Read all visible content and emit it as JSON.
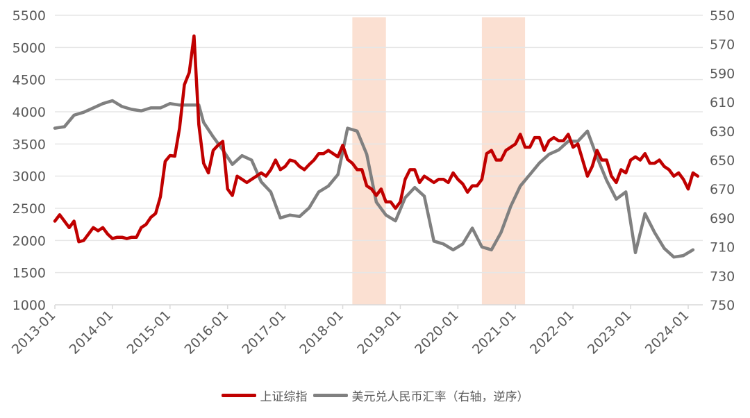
{
  "chart_data": {
    "type": "line",
    "title": "",
    "xlabel": "",
    "ylabel": "",
    "x_ticks": [
      "2013-01",
      "2014-01",
      "2015-01",
      "2016-01",
      "2017-01",
      "2018-01",
      "2019-01",
      "2020-01",
      "2021-01",
      "2022-01",
      "2023-01",
      "2024-01"
    ],
    "y_left": {
      "ticks": [
        1000,
        1500,
        2000,
        2500,
        3000,
        3500,
        4000,
        4500,
        5000,
        5500
      ],
      "range": [
        1000,
        5500
      ]
    },
    "y_right": {
      "ticks": [
        550,
        570,
        590,
        610,
        630,
        650,
        670,
        690,
        710,
        730,
        750
      ],
      "range": [
        550,
        750
      ],
      "inverted": true
    },
    "grid": "horizontal",
    "legend_position": "bottom",
    "shaded_periods": [
      {
        "start": "2018-03",
        "end": "2018-10",
        "color": "#fbe0d2"
      },
      {
        "start": "2020-06",
        "end": "2021-03",
        "color": "#fbe0d2"
      }
    ],
    "series": [
      {
        "name": "上证综指",
        "axis": "left",
        "color": "#c00000",
        "x": [
          "2013-01",
          "2013-02",
          "2013-03",
          "2013-04",
          "2013-05",
          "2013-06",
          "2013-07",
          "2013-08",
          "2013-09",
          "2013-10",
          "2013-11",
          "2013-12",
          "2014-01",
          "2014-02",
          "2014-03",
          "2014-04",
          "2014-05",
          "2014-06",
          "2014-07",
          "2014-08",
          "2014-09",
          "2014-10",
          "2014-11",
          "2014-12",
          "2015-01",
          "2015-02",
          "2015-03",
          "2015-04",
          "2015-05",
          "2015-06",
          "2015-07",
          "2015-08",
          "2015-09",
          "2015-10",
          "2015-11",
          "2015-12",
          "2016-01",
          "2016-02",
          "2016-03",
          "2016-04",
          "2016-05",
          "2016-06",
          "2016-07",
          "2016-08",
          "2016-09",
          "2016-10",
          "2016-11",
          "2016-12",
          "2017-01",
          "2017-02",
          "2017-03",
          "2017-04",
          "2017-05",
          "2017-06",
          "2017-07",
          "2017-08",
          "2017-09",
          "2017-10",
          "2017-11",
          "2017-12",
          "2018-01",
          "2018-02",
          "2018-03",
          "2018-04",
          "2018-05",
          "2018-06",
          "2018-07",
          "2018-08",
          "2018-09",
          "2018-10",
          "2018-11",
          "2018-12",
          "2019-01",
          "2019-02",
          "2019-03",
          "2019-04",
          "2019-05",
          "2019-06",
          "2019-07",
          "2019-08",
          "2019-09",
          "2019-10",
          "2019-11",
          "2019-12",
          "2020-01",
          "2020-02",
          "2020-03",
          "2020-04",
          "2020-05",
          "2020-06",
          "2020-07",
          "2020-08",
          "2020-09",
          "2020-10",
          "2020-11",
          "2020-12",
          "2021-01",
          "2021-02",
          "2021-03",
          "2021-04",
          "2021-05",
          "2021-06",
          "2021-07",
          "2021-08",
          "2021-09",
          "2021-10",
          "2021-11",
          "2021-12",
          "2022-01",
          "2022-02",
          "2022-03",
          "2022-04",
          "2022-05",
          "2022-06",
          "2022-07",
          "2022-08",
          "2022-09",
          "2022-10",
          "2022-11",
          "2022-12",
          "2023-01",
          "2023-02",
          "2023-03",
          "2023-04",
          "2023-05",
          "2023-06",
          "2023-07",
          "2023-08",
          "2023-09",
          "2023-10",
          "2023-11",
          "2023-12",
          "2024-01",
          "2024-02",
          "2024-03"
        ],
        "values": [
          2300,
          2400,
          2300,
          2200,
          2300,
          1980,
          2000,
          2100,
          2200,
          2150,
          2200,
          2100,
          2030,
          2050,
          2050,
          2030,
          2050,
          2050,
          2200,
          2250,
          2360,
          2420,
          2680,
          3230,
          3320,
          3310,
          3750,
          4420,
          4610,
          5180,
          3800,
          3200,
          3050,
          3400,
          3480,
          3540,
          2800,
          2700,
          3000,
          2950,
          2900,
          2950,
          3000,
          3050,
          3000,
          3100,
          3250,
          3100,
          3150,
          3250,
          3230,
          3150,
          3100,
          3180,
          3250,
          3350,
          3350,
          3400,
          3350,
          3300,
          3480,
          3260,
          3200,
          3100,
          3100,
          2850,
          2800,
          2700,
          2800,
          2600,
          2600,
          2500,
          2600,
          2950,
          3100,
          3100,
          2900,
          3000,
          2950,
          2900,
          2950,
          2950,
          2900,
          3050,
          2950,
          2880,
          2750,
          2850,
          2850,
          2950,
          3350,
          3400,
          3250,
          3250,
          3400,
          3450,
          3500,
          3650,
          3450,
          3450,
          3600,
          3600,
          3400,
          3550,
          3600,
          3550,
          3550,
          3650,
          3450,
          3500,
          3250,
          3000,
          3150,
          3400,
          3250,
          3250,
          3000,
          2900,
          3100,
          3050,
          3250,
          3300,
          3250,
          3350,
          3200,
          3200,
          3250,
          3150,
          3100,
          3000,
          3050,
          2950,
          2800,
          3050,
          3000
        ]
      },
      {
        "name": "美元兑人民币汇率（右轴，逆序）",
        "axis": "right",
        "color": "#808080",
        "x": [
          "2013-01",
          "2013-03",
          "2013-05",
          "2013-07",
          "2013-09",
          "2013-11",
          "2014-01",
          "2014-03",
          "2014-05",
          "2014-07",
          "2014-09",
          "2014-11",
          "2015-01",
          "2015-03",
          "2015-05",
          "2015-07",
          "2015-08",
          "2015-10",
          "2015-12",
          "2016-02",
          "2016-04",
          "2016-06",
          "2016-08",
          "2016-10",
          "2016-12",
          "2017-02",
          "2017-04",
          "2017-06",
          "2017-08",
          "2017-10",
          "2017-12",
          "2018-02",
          "2018-04",
          "2018-06",
          "2018-08",
          "2018-10",
          "2018-12",
          "2019-02",
          "2019-04",
          "2019-06",
          "2019-08",
          "2019-10",
          "2019-12",
          "2020-02",
          "2020-04",
          "2020-06",
          "2020-08",
          "2020-10",
          "2020-12",
          "2021-02",
          "2021-04",
          "2021-06",
          "2021-08",
          "2021-10",
          "2021-12",
          "2022-02",
          "2022-04",
          "2022-06",
          "2022-08",
          "2022-10",
          "2022-12",
          "2023-02",
          "2023-04",
          "2023-06",
          "2023-08",
          "2023-10",
          "2023-12",
          "2024-02"
        ],
        "values": [
          628,
          627,
          619,
          617,
          614,
          611,
          609,
          613,
          615,
          616,
          614,
          614,
          611,
          612,
          612,
          612,
          624,
          634,
          643,
          653,
          647,
          650,
          665,
          672,
          690,
          688,
          689,
          683,
          672,
          668,
          660,
          628,
          630,
          646,
          679,
          688,
          692,
          676,
          669,
          675,
          706,
          708,
          712,
          708,
          697,
          710,
          712,
          700,
          682,
          668,
          660,
          652,
          646,
          643,
          637,
          637,
          630,
          648,
          664,
          677,
          672,
          714,
          687,
          700,
          711,
          717,
          716,
          712
        ]
      }
    ]
  },
  "legend": {
    "items": [
      {
        "label": "上证综指",
        "color": "#c00000"
      },
      {
        "label": "美元兑人民币汇率（右轴，逆序）",
        "color": "#808080"
      }
    ]
  }
}
